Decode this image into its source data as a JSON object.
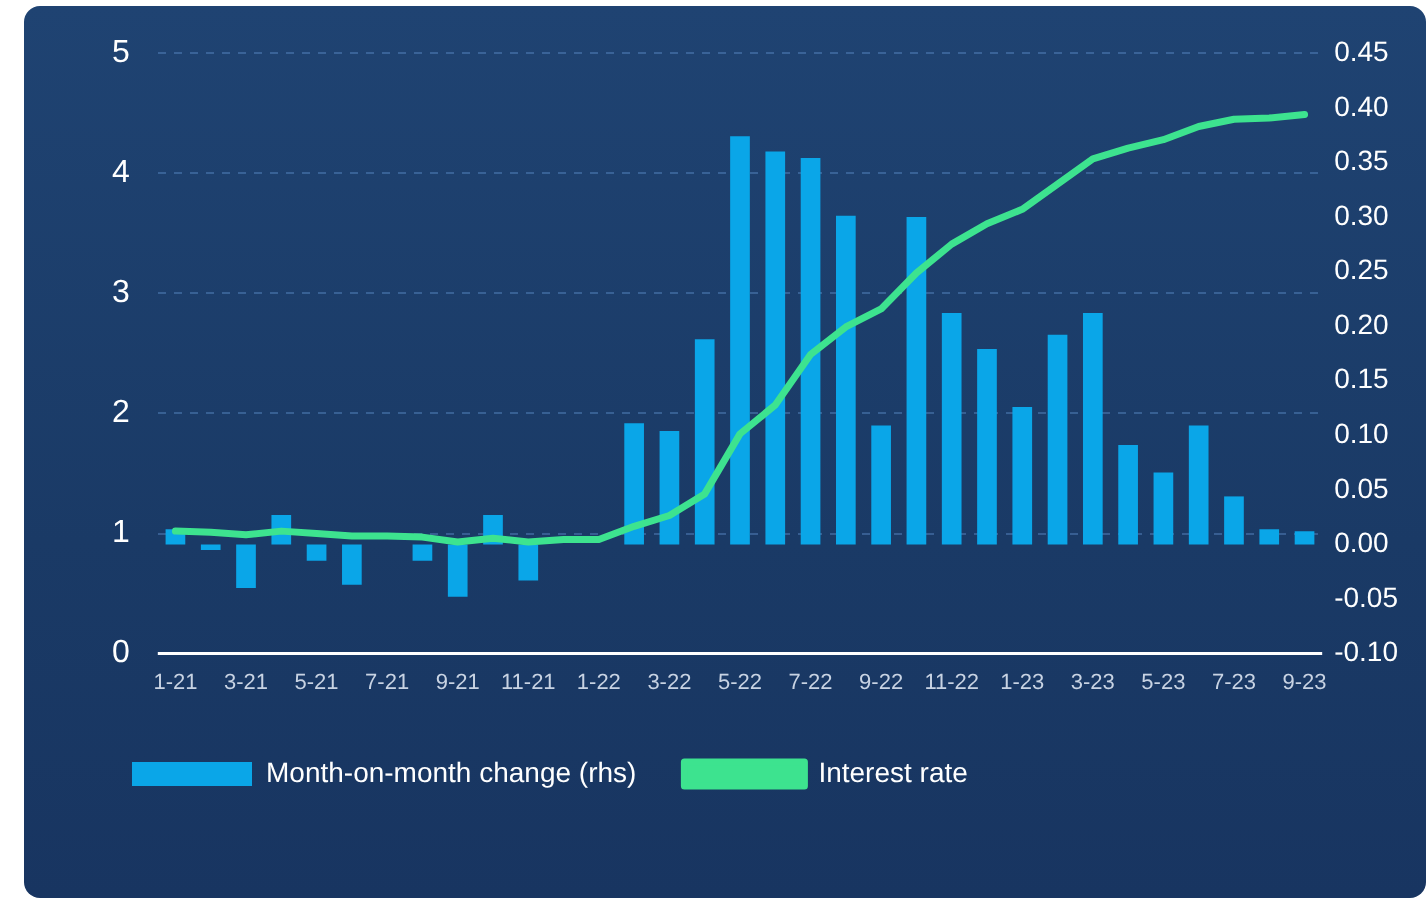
{
  "chart_data": {
    "type": "bar",
    "categories": [
      "1-21",
      null,
      "3-21",
      null,
      "5-21",
      null,
      "7-21",
      null,
      "9-21",
      null,
      "11-21",
      null,
      "1-22",
      null,
      "3-22",
      null,
      "5-22",
      null,
      "7-22",
      null,
      "9-22",
      null,
      "11-22",
      null,
      "1-23",
      null,
      "3-23",
      null,
      "5-23",
      null,
      "7-23",
      null,
      "9-23"
    ],
    "series": [
      {
        "name": "Month-on-month change (rhs)",
        "axis": "y2",
        "color": "#0aa6e8",
        "values": [
          0.014,
          -0.005,
          -0.04,
          0.027,
          -0.015,
          -0.037,
          0,
          -0.015,
          -0.048,
          0.027,
          -0.033,
          0,
          0,
          0.111,
          0.104,
          0.188,
          0.374,
          0.36,
          0.354,
          0.301,
          0.109,
          0.3,
          0.212,
          0.179,
          0.126,
          0.192,
          0.212,
          0.091,
          0.066,
          0.109,
          0.044,
          0.014,
          0.012
        ]
      },
      {
        "name": "Interest rate",
        "type": "line",
        "color": "#3de38f",
        "values": [
          1.02,
          1.01,
          0.99,
          1.02,
          1.0,
          0.98,
          0.98,
          0.97,
          0.93,
          0.96,
          0.93,
          0.95,
          0.95,
          1.06,
          1.15,
          1.33,
          1.83,
          2.07,
          2.49,
          2.72,
          2.87,
          3.17,
          3.41,
          3.58,
          3.7,
          3.91,
          4.12,
          4.21,
          4.28,
          4.39,
          4.45,
          4.46,
          4.49
        ]
      }
    ],
    "ylim": [
      0,
      5
    ],
    "yticks": [
      0,
      1,
      2,
      3,
      4,
      5
    ],
    "y2lim": [
      -0.1,
      0.45
    ],
    "y2ticks": [
      {
        "value": -0.1,
        "label": "-0.10"
      },
      -0.05,
      {
        "value": 0,
        "label": "0.00"
      },
      0.05,
      {
        "value": 0.1,
        "label": "0.10"
      },
      0.15,
      {
        "value": 0.2,
        "label": "0.20"
      },
      0.25,
      {
        "value": 0.3,
        "label": "0.30"
      },
      0.35,
      {
        "value": 0.4,
        "label": "0.40"
      },
      0.45
    ],
    "grid": "y",
    "legend": "bottom left",
    "marker": "none",
    "line_style": "solid"
  }
}
